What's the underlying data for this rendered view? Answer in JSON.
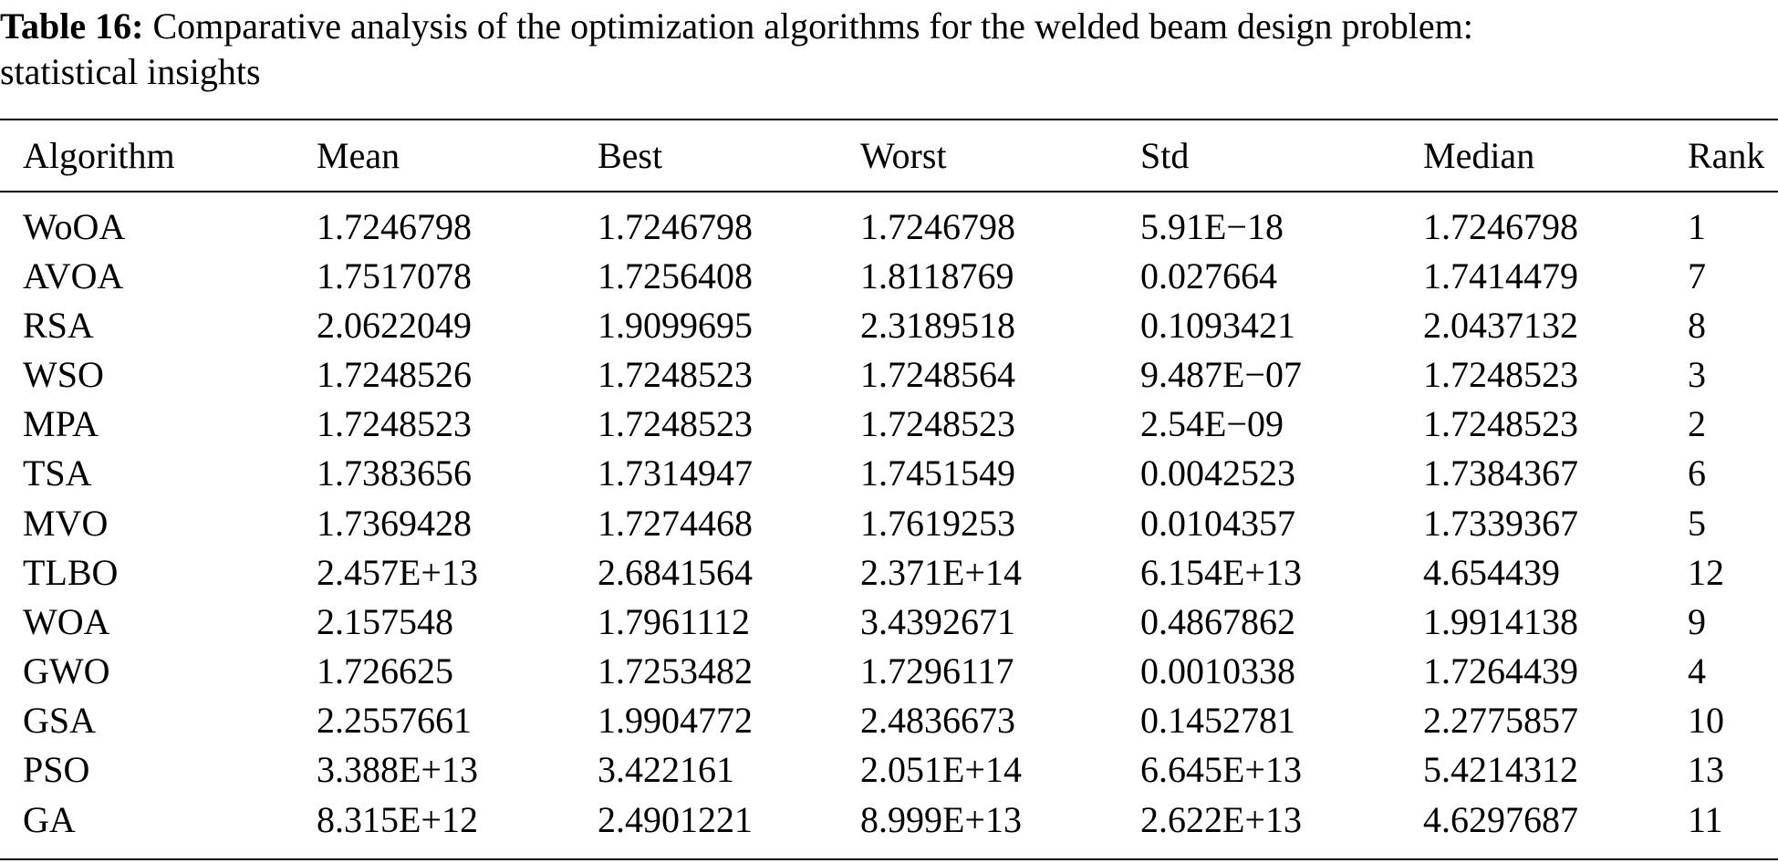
{
  "caption": {
    "label": "Table 16:",
    "text_line1": " Comparative analysis of the optimization algorithms for the welded beam design problem:",
    "text_line2": "statistical insights"
  },
  "table": {
    "headers": [
      "Algorithm",
      "Mean",
      "Best",
      "Worst",
      "Std",
      "Median",
      "Rank"
    ],
    "rows": [
      {
        "cells": [
          "WoOA",
          "1.7246798",
          "1.7246798",
          "1.7246798",
          "5.91E−18",
          "1.7246798",
          "1"
        ],
        "bold": [
          false,
          true,
          true,
          true,
          true,
          true,
          true
        ]
      },
      {
        "cells": [
          "AVOA",
          "1.7517078",
          "1.7256408",
          "1.8118769",
          "0.027664",
          "1.7414479",
          "7"
        ]
      },
      {
        "cells": [
          "RSA",
          "2.0622049",
          "1.9099695",
          "2.3189518",
          "0.1093421",
          "2.0437132",
          "8"
        ]
      },
      {
        "cells": [
          "WSO",
          "1.7248526",
          "1.7248523",
          "1.7248564",
          "9.487E−07",
          "1.7248523",
          "3"
        ]
      },
      {
        "cells": [
          "MPA",
          "1.7248523",
          "1.7248523",
          "1.7248523",
          "2.54E−09",
          "1.7248523",
          "2"
        ]
      },
      {
        "cells": [
          "TSA",
          "1.7383656",
          "1.7314947",
          "1.7451549",
          "0.0042523",
          "1.7384367",
          "6"
        ]
      },
      {
        "cells": [
          "MVO",
          "1.7369428",
          "1.7274468",
          "1.7619253",
          "0.0104357",
          "1.7339367",
          "5"
        ]
      },
      {
        "cells": [
          "TLBO",
          "2.457E+13",
          "2.6841564",
          "2.371E+14",
          "6.154E+13",
          "4.654439",
          "12"
        ]
      },
      {
        "cells": [
          "WOA",
          "2.157548",
          "1.7961112",
          "3.4392671",
          "0.4867862",
          "1.9914138",
          "9"
        ]
      },
      {
        "cells": [
          "GWO",
          "1.726625",
          "1.7253482",
          "1.7296117",
          "0.0010338",
          "1.7264439",
          "4"
        ]
      },
      {
        "cells": [
          "GSA",
          "2.2557661",
          "1.9904772",
          "2.4836673",
          "0.1452781",
          "2.2775857",
          "10"
        ]
      },
      {
        "cells": [
          "PSO",
          "3.388E+13",
          "3.422161",
          "2.051E+14",
          "6.645E+13",
          "5.4214312",
          "13"
        ]
      },
      {
        "cells": [
          "GA",
          "8.315E+12",
          "2.4901221",
          "8.999E+13",
          "2.622E+13",
          "4.6297687",
          "11"
        ]
      }
    ]
  }
}
